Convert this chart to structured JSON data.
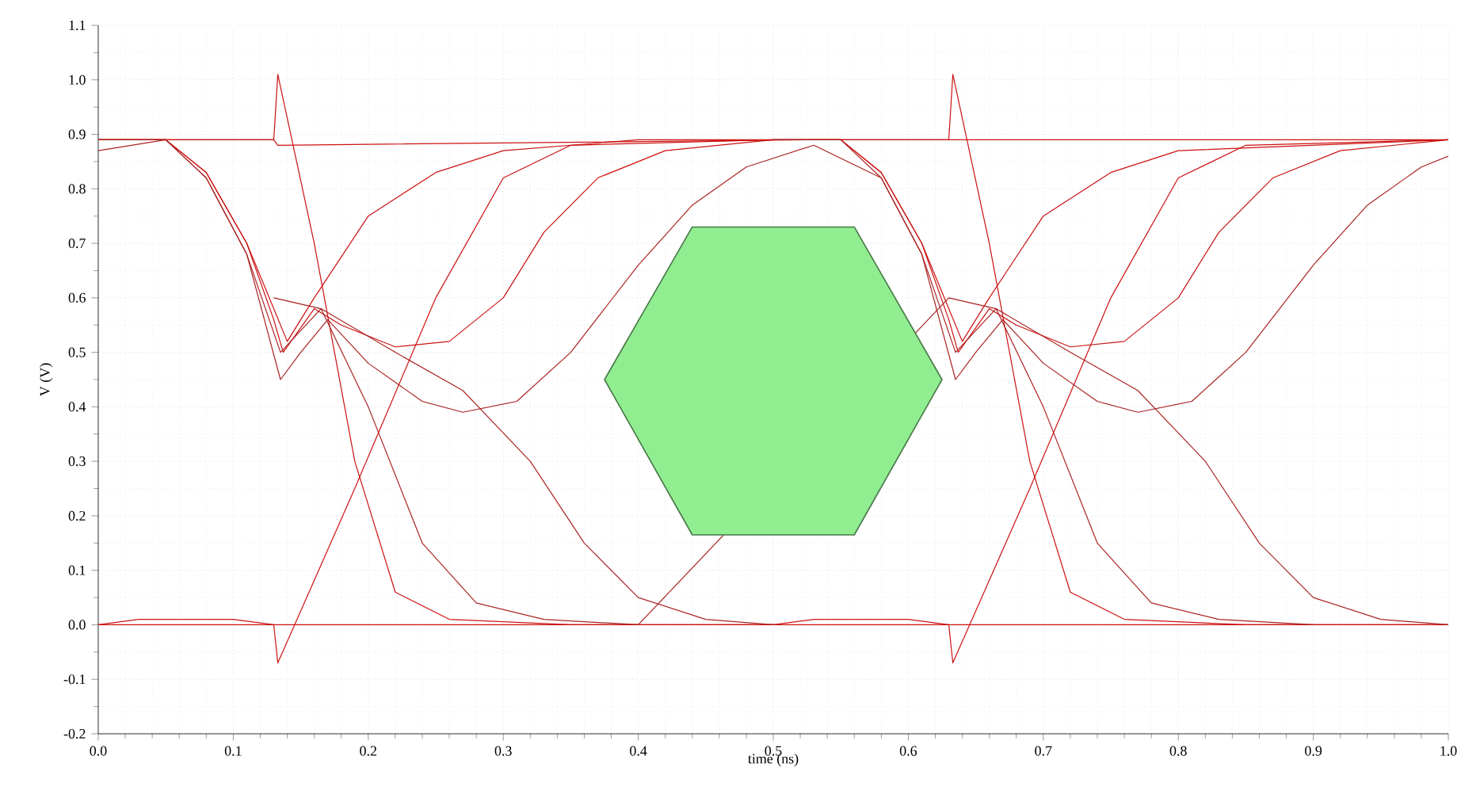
{
  "chart_data": {
    "type": "line",
    "xlabel": "time (ns)",
    "ylabel": "V (V)",
    "xlim": [
      0,
      1
    ],
    "ylim": [
      -0.2,
      1.1
    ],
    "grid": true,
    "line_style": "solid",
    "xticks": [
      {
        "value": 0,
        "label": "0.0"
      },
      0.1,
      0.2,
      0.3,
      0.4,
      0.5,
      0.6,
      0.7,
      0.8,
      0.9,
      {
        "value": 1,
        "label": "1.0"
      }
    ],
    "yticks": [
      -0.2,
      -0.1,
      {
        "value": 0,
        "label": "0.0"
      },
      0.1,
      0.2,
      0.3,
      0.4,
      0.5,
      0.6,
      0.7,
      0.8,
      0.9,
      {
        "value": 1,
        "label": "1.0"
      },
      1.1
    ],
    "series": [
      {
        "color": "#cc1111",
        "x": [
          0,
          0.03,
          0.13,
          0.133,
          0.53,
          0.63,
          1
        ],
        "values": [
          0.89,
          0.89,
          0.89,
          0.88,
          0.89,
          0.89,
          0.89
        ]
      },
      {
        "color": "#cc1111",
        "x": [
          0,
          0.03,
          0.1,
          0.13,
          0.5,
          0.53,
          0.6,
          0.63,
          1
        ],
        "values": [
          0,
          0.01,
          0.01,
          0,
          0,
          0.01,
          0.01,
          0,
          0
        ]
      },
      {
        "color": "#cc1111",
        "x": [
          0,
          0.13,
          0.133,
          0.16,
          0.19,
          0.22,
          0.26,
          0.35,
          0.63,
          0.633,
          0.69,
          0.75,
          0.8,
          0.85,
          1
        ],
        "values": [
          0.89,
          0.89,
          1.01,
          0.7,
          0.3,
          0.06,
          0.01,
          0,
          0,
          -0.07,
          0.25,
          0.6,
          0.82,
          0.88,
          0.89
        ]
      },
      {
        "color": "#cc1111",
        "x": [
          0,
          0.13,
          0.133,
          0.19,
          0.25,
          0.3,
          0.35,
          0.5,
          0.63,
          0.633,
          0.66,
          0.69,
          0.72,
          0.76,
          0.85,
          1
        ],
        "values": [
          0,
          0,
          -0.07,
          0.25,
          0.6,
          0.82,
          0.88,
          0.89,
          0.89,
          1.01,
          0.7,
          0.3,
          0.06,
          0.01,
          0,
          0
        ]
      },
      {
        "color": "#cc1111",
        "x": [
          0,
          0.05,
          0.08,
          0.11,
          0.13,
          0.14,
          0.16,
          0.2,
          0.25,
          0.3,
          0.4,
          0.55,
          0.58,
          0.61,
          0.63,
          0.64,
          0.66,
          0.7,
          0.75,
          0.8,
          1
        ],
        "values": [
          0.89,
          0.89,
          0.83,
          0.7,
          0.58,
          0.52,
          0.6,
          0.75,
          0.83,
          0.87,
          0.89,
          0.89,
          0.83,
          0.7,
          0.58,
          0.52,
          0.6,
          0.75,
          0.83,
          0.87,
          0.89
        ]
      },
      {
        "color": "#cc1111",
        "x": [
          0,
          0.05,
          0.08,
          0.11,
          0.13,
          0.137,
          0.16,
          0.18,
          0.22,
          0.26,
          0.3,
          0.33,
          0.37,
          0.42,
          0.5,
          0.55,
          0.58,
          0.61,
          0.63,
          0.637,
          0.66,
          0.68,
          0.72,
          0.76,
          0.8,
          0.83,
          0.87,
          0.92,
          1
        ],
        "values": [
          0.89,
          0.89,
          0.83,
          0.7,
          0.56,
          0.5,
          0.58,
          0.55,
          0.51,
          0.52,
          0.6,
          0.72,
          0.82,
          0.87,
          0.89,
          0.89,
          0.83,
          0.7,
          0.56,
          0.5,
          0.58,
          0.55,
          0.51,
          0.52,
          0.6,
          0.72,
          0.82,
          0.87,
          0.89
        ]
      },
      {
        "color": "#aa2222",
        "x": [
          0,
          0.05,
          0.08,
          0.11,
          0.135,
          0.15,
          0.17,
          0.2,
          0.24,
          0.27,
          0.31,
          0.35,
          0.4,
          0.44,
          0.48,
          0.53,
          0.58,
          0.61,
          0.635,
          0.65,
          0.67,
          0.7,
          0.74,
          0.77,
          0.81,
          0.85,
          0.9,
          0.94,
          0.98,
          1
        ],
        "values": [
          0.87,
          0.89,
          0.82,
          0.68,
          0.45,
          0.5,
          0.56,
          0.48,
          0.41,
          0.39,
          0.41,
          0.5,
          0.66,
          0.77,
          0.84,
          0.88,
          0.82,
          0.68,
          0.45,
          0.5,
          0.56,
          0.48,
          0.41,
          0.39,
          0.41,
          0.5,
          0.66,
          0.77,
          0.84,
          0.86
        ]
      },
      {
        "color": "#aa2222",
        "x": [
          0,
          0.05,
          0.08,
          0.11,
          0.135,
          0.165,
          0.22,
          0.27,
          0.32,
          0.36,
          0.4,
          0.45,
          0.5
        ],
        "values": [
          0.89,
          0.89,
          0.82,
          0.68,
          0.5,
          0.58,
          0.5,
          0.43,
          0.3,
          0.15,
          0.05,
          0.01,
          0
        ]
      },
      {
        "color": "#aa2222",
        "x": [
          0.5,
          0.55,
          0.58,
          0.61,
          0.635,
          0.665,
          0.72,
          0.77,
          0.82,
          0.86,
          0.9,
          0.95,
          1
        ],
        "values": [
          0.89,
          0.89,
          0.82,
          0.68,
          0.5,
          0.58,
          0.5,
          0.43,
          0.3,
          0.15,
          0.05,
          0.01,
          0
        ]
      },
      {
        "color": "#aa2222",
        "x": [
          0.13,
          0.165,
          0.2,
          0.24,
          0.28,
          0.33,
          0.4,
          0.63,
          0.665,
          0.7,
          0.74,
          0.78,
          0.83,
          0.9
        ],
        "values": [
          0.6,
          0.58,
          0.4,
          0.15,
          0.04,
          0.01,
          0,
          0.6,
          0.58,
          0.4,
          0.15,
          0.04,
          0.01,
          0
        ]
      },
      {
        "type": "area",
        "color": "#90ee90",
        "x": [
          0.375,
          0.44,
          0.56,
          0.625,
          0.56,
          0.44
        ],
        "values": [
          0.45,
          0.73,
          0.73,
          0.45,
          0.165,
          0.165
        ]
      }
    ]
  }
}
